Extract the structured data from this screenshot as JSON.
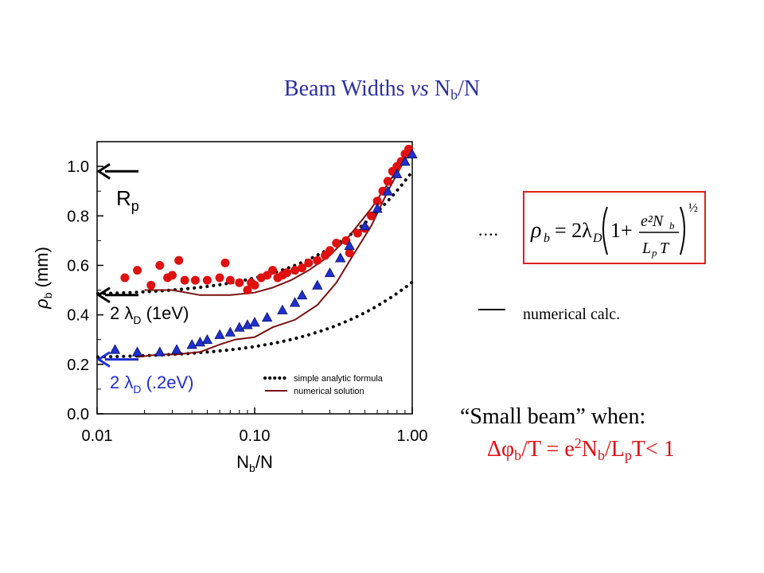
{
  "title": {
    "prefix": "Beam Widths ",
    "vs": "vs",
    "n": " N",
    "sub": "b",
    "suffix": "/N"
  },
  "legend_right": {
    "dots": "....",
    "formula_lhs": "ρ",
    "formula_text": "ρb = 2λD(1 + e²Nb / LpT)^½",
    "line_label": "numerical calc."
  },
  "condition": {
    "line1": "“Small beam” when:",
    "delta": "Δφ",
    "b1": "b",
    "T": "/T  = e",
    "two": "2",
    "N": "N",
    "b2": "b",
    "L": "/L",
    "p": "p",
    "tail": "T< 1"
  },
  "colors": {
    "title": "#2b2fa0",
    "red": "#e01010",
    "blue": "#1f2fd0",
    "dark_red": "#7a1010",
    "box": "#e02020"
  },
  "chart_data": {
    "type": "scatter",
    "xscale": "log",
    "xlim": [
      0.01,
      1.0
    ],
    "ylim": [
      0.0,
      1.1
    ],
    "xticks": [
      "0.01",
      "0.10",
      "1.00"
    ],
    "yticks": [
      "0.0",
      "0.2",
      "0.4",
      "0.6",
      "0.8",
      "1.0"
    ],
    "xlabel": "Nb/N",
    "ylabel": "ρb (mm)",
    "annotations": [
      {
        "text": "Rp",
        "y": 0.98,
        "color": "#000000"
      },
      {
        "text": "2 λD (1eV)",
        "y": 0.48,
        "color": "#000000"
      },
      {
        "text": "2 λD (.2eV)",
        "y": 0.22,
        "color": "#1f2fd0"
      }
    ],
    "legend": {
      "position": "bottom-right",
      "entries": [
        "simple analytic formula",
        "numerical solution"
      ]
    },
    "series": [
      {
        "marker": "circle",
        "color": "#e01010",
        "points": [
          [
            0.015,
            0.55
          ],
          [
            0.018,
            0.58
          ],
          [
            0.022,
            0.52
          ],
          [
            0.025,
            0.6
          ],
          [
            0.028,
            0.55
          ],
          [
            0.03,
            0.56
          ],
          [
            0.033,
            0.62
          ],
          [
            0.036,
            0.54
          ],
          [
            0.042,
            0.54
          ],
          [
            0.05,
            0.54
          ],
          [
            0.06,
            0.55
          ],
          [
            0.065,
            0.61
          ],
          [
            0.07,
            0.54
          ],
          [
            0.08,
            0.53
          ],
          [
            0.09,
            0.5
          ],
          [
            0.095,
            0.53
          ],
          [
            0.1,
            0.52
          ],
          [
            0.11,
            0.55
          ],
          [
            0.12,
            0.56
          ],
          [
            0.13,
            0.58
          ],
          [
            0.14,
            0.55
          ],
          [
            0.15,
            0.56
          ],
          [
            0.16,
            0.57
          ],
          [
            0.18,
            0.58
          ],
          [
            0.2,
            0.59
          ],
          [
            0.22,
            0.61
          ],
          [
            0.25,
            0.62
          ],
          [
            0.28,
            0.64
          ],
          [
            0.3,
            0.66
          ],
          [
            0.33,
            0.69
          ],
          [
            0.38,
            0.7
          ],
          [
            0.4,
            0.65
          ],
          [
            0.45,
            0.73
          ],
          [
            0.5,
            0.75
          ],
          [
            0.55,
            0.8
          ],
          [
            0.6,
            0.86
          ],
          [
            0.65,
            0.9
          ],
          [
            0.7,
            0.94
          ],
          [
            0.75,
            0.98
          ],
          [
            0.8,
            1.0
          ],
          [
            0.85,
            1.02
          ],
          [
            0.9,
            1.05
          ],
          [
            0.95,
            1.07
          ]
        ]
      },
      {
        "marker": "triangle",
        "color": "#1f2fd0",
        "points": [
          [
            0.013,
            0.26
          ],
          [
            0.018,
            0.25
          ],
          [
            0.025,
            0.25
          ],
          [
            0.032,
            0.26
          ],
          [
            0.04,
            0.28
          ],
          [
            0.045,
            0.29
          ],
          [
            0.05,
            0.3
          ],
          [
            0.06,
            0.32
          ],
          [
            0.07,
            0.33
          ],
          [
            0.08,
            0.35
          ],
          [
            0.09,
            0.36
          ],
          [
            0.1,
            0.37
          ],
          [
            0.12,
            0.39
          ],
          [
            0.15,
            0.42
          ],
          [
            0.18,
            0.45
          ],
          [
            0.2,
            0.48
          ],
          [
            0.25,
            0.52
          ],
          [
            0.3,
            0.57
          ],
          [
            0.35,
            0.63
          ],
          [
            0.4,
            0.68
          ],
          [
            0.5,
            0.76
          ],
          [
            0.6,
            0.83
          ],
          [
            0.7,
            0.9
          ],
          [
            0.8,
            0.97
          ],
          [
            0.9,
            1.02
          ],
          [
            1.0,
            1.05
          ]
        ]
      }
    ],
    "curves": [
      {
        "name": "simple analytic formula",
        "style": "dotted",
        "color": "#000000",
        "params": {
          "a": 0.478,
          "b": 0.64
        }
      },
      {
        "name": "simple analytic formula",
        "style": "dotted",
        "color": "#000000",
        "params": {
          "a": 0.225,
          "b": 0.92
        }
      },
      {
        "name": "numerical solution",
        "style": "solid",
        "color": "#7a1010",
        "points": [
          [
            0.02,
            0.5
          ],
          [
            0.03,
            0.5
          ],
          [
            0.045,
            0.48
          ],
          [
            0.07,
            0.48
          ],
          [
            0.1,
            0.49
          ],
          [
            0.13,
            0.51
          ],
          [
            0.17,
            0.54
          ],
          [
            0.22,
            0.58
          ],
          [
            0.3,
            0.64
          ],
          [
            0.4,
            0.72
          ],
          [
            0.55,
            0.83
          ],
          [
            0.7,
            0.93
          ],
          [
            0.85,
            1.01
          ],
          [
            1.0,
            1.08
          ]
        ]
      },
      {
        "name": "numerical solution",
        "style": "solid",
        "color": "#7a1010",
        "points": [
          [
            0.018,
            0.23
          ],
          [
            0.025,
            0.24
          ],
          [
            0.032,
            0.24
          ],
          [
            0.045,
            0.25
          ],
          [
            0.06,
            0.28
          ],
          [
            0.075,
            0.3
          ],
          [
            0.1,
            0.31
          ],
          [
            0.13,
            0.35
          ],
          [
            0.18,
            0.38
          ],
          [
            0.25,
            0.44
          ],
          [
            0.33,
            0.53
          ],
          [
            0.42,
            0.64
          ],
          [
            0.55,
            0.76
          ],
          [
            0.7,
            0.9
          ],
          [
            0.85,
            1.0
          ],
          [
            1.0,
            1.07
          ]
        ]
      }
    ]
  }
}
